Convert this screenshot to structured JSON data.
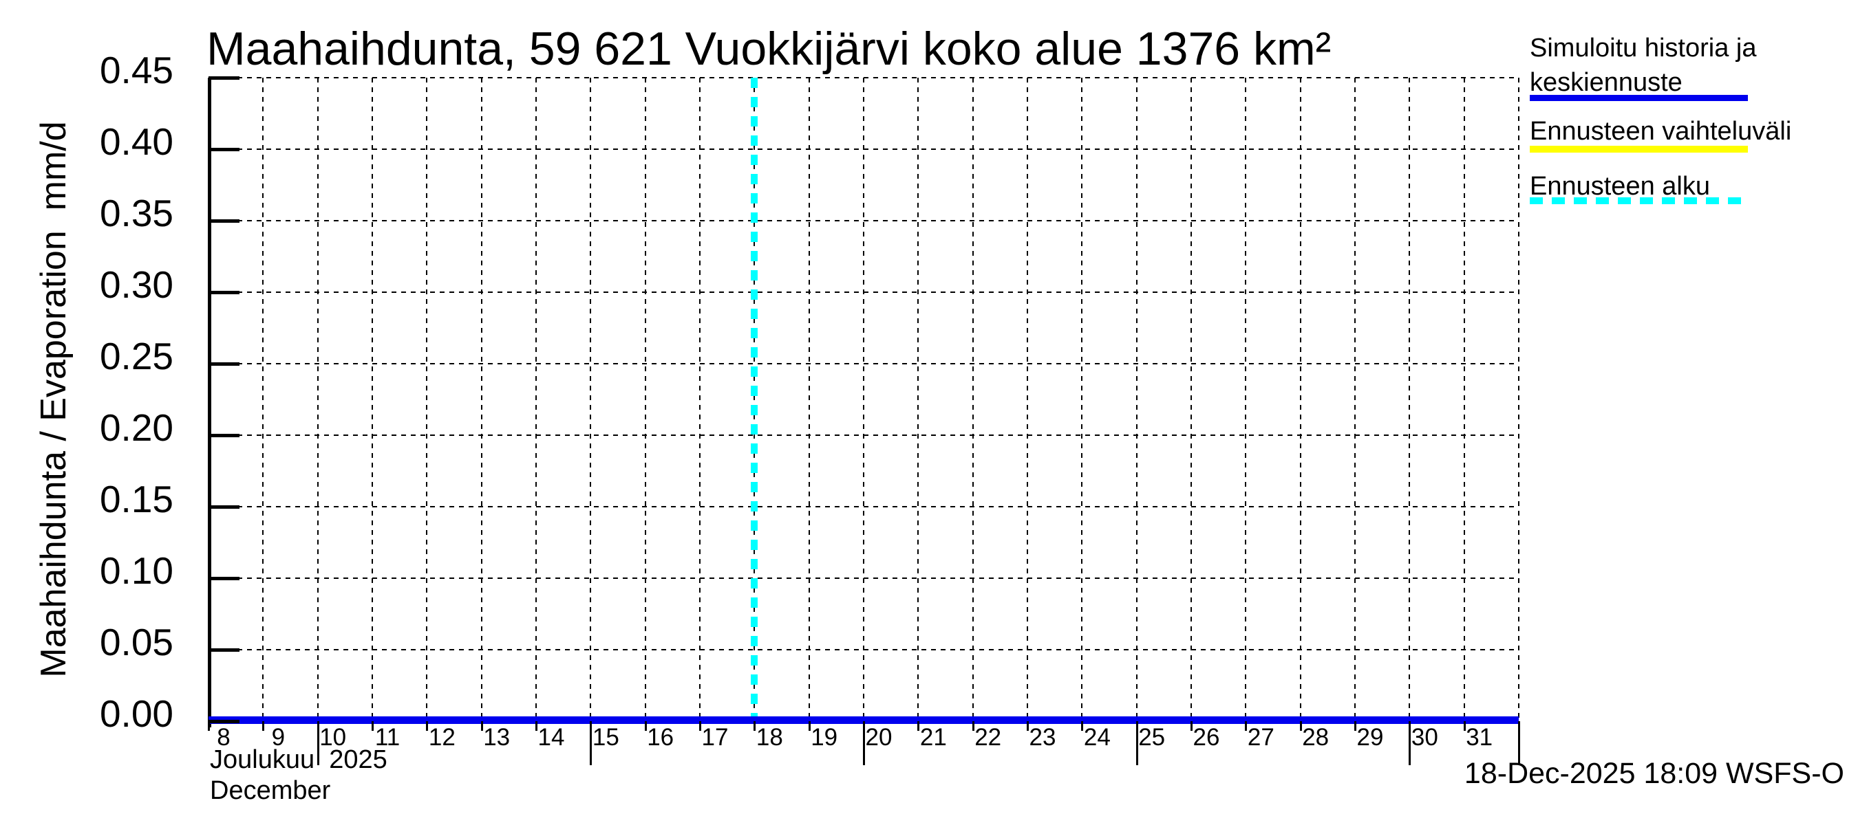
{
  "title": "Maahaihdunta, 59 621 Vuokkijärvi koko alue 1376 km²",
  "axes": {
    "y": {
      "label": "Maahaihdunta / Evaporation  mm/d",
      "ticks": [
        "0.45",
        "0.40",
        "0.35",
        "0.30",
        "0.25",
        "0.20",
        "0.15",
        "0.10",
        "0.05",
        "0.00"
      ]
    },
    "x": {
      "ticks": [
        "8",
        "9",
        "10",
        "11",
        "12",
        "13",
        "14",
        "15",
        "16",
        "17",
        "18",
        "19",
        "20",
        "21",
        "22",
        "23",
        "24",
        "25",
        "26",
        "27",
        "28",
        "29",
        "30",
        "31"
      ],
      "major_tick_days": [
        "10",
        "15",
        "20",
        "25",
        "30"
      ],
      "month_label_fi": "Joulukuu  2025",
      "month_label_en": "December"
    }
  },
  "legend": {
    "items": [
      {
        "label_lines": [
          "Simuloitu historia ja",
          "keskiennuste"
        ],
        "color": "#0000EE",
        "line_style": "solid"
      },
      {
        "label_lines": [
          "Ennusteen vaihteluväli"
        ],
        "color": "#FFFF00",
        "line_style": "solid"
      },
      {
        "label_lines": [
          "Ennusteen alku"
        ],
        "color": "#00FFFF",
        "line_style": "dashed"
      }
    ]
  },
  "footer": {
    "timestamp": "18-Dec-2025 18:09 WSFS-O"
  },
  "colors": {
    "history_mean_forecast": "#0000EE",
    "forecast_range": "#FFFF00",
    "forecast_start": "#00FFFF",
    "grid": "#000000",
    "background": "#FFFFFF"
  },
  "chart_data": {
    "type": "line",
    "title": "Maahaihdunta, 59 621 Vuokkijärvi koko alue 1376 km²",
    "station": "59 621 Vuokkijärvi koko alue",
    "area_km2": 1376,
    "ylabel": "Maahaihdunta / Evaporation  mm/d",
    "xlabel": "Joulukuu 2025 / December",
    "ylim": [
      0.0,
      0.45
    ],
    "y_tick_step": 0.05,
    "x_days_december_2025": [
      8,
      9,
      10,
      11,
      12,
      13,
      14,
      15,
      16,
      17,
      18,
      19,
      20,
      21,
      22,
      23,
      24,
      25,
      26,
      27,
      28,
      29,
      30,
      31
    ],
    "grid": true,
    "legend_position": "top-right",
    "series": [
      {
        "name": "Simuloitu historia ja keskiennuste",
        "color": "#0000EE",
        "style": "solid",
        "values_mm_per_day": [
          0.0,
          0.0,
          0.0,
          0.0,
          0.0,
          0.0,
          0.0,
          0.0,
          0.0,
          0.0,
          0.0,
          0.0,
          0.0,
          0.0,
          0.0,
          0.0,
          0.0,
          0.0,
          0.0,
          0.0,
          0.0,
          0.0,
          0.0,
          0.0
        ]
      },
      {
        "name": "Ennusteen vaihteluväli",
        "color": "#FFFF00",
        "style": "solid",
        "visible": false,
        "note": "forecast range collapsed at 0.00, hidden behind mean line"
      }
    ],
    "annotations": [
      {
        "name": "Ennusteen alku",
        "type": "vertical-line",
        "x_day": 18,
        "color": "#00FFFF",
        "style": "dashed"
      }
    ]
  }
}
